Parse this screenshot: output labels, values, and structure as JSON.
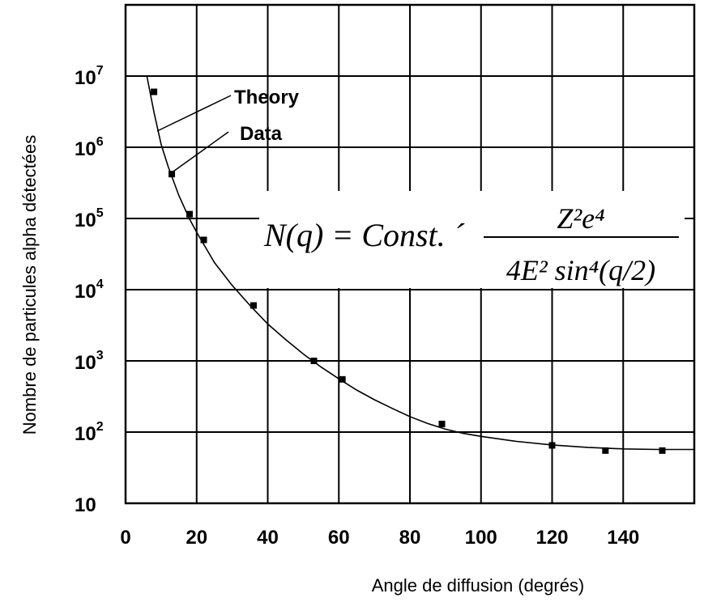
{
  "chart_data": {
    "type": "scatter",
    "ylabel": "Nombre de particules alpha détectées",
    "xlabel": "Angle de diffusion (degrés)",
    "xlim": [
      0,
      160
    ],
    "ylim": [
      10,
      100000000
    ],
    "y_scale": "log",
    "grid": true,
    "x_ticks": [
      "0",
      "20",
      "40",
      "60",
      "80",
      "100",
      "120",
      "140"
    ],
    "y_ticks": [
      {
        "base": "10",
        "exp": "7"
      },
      {
        "base": "10",
        "exp": "6"
      },
      {
        "base": "10",
        "exp": "5"
      },
      {
        "base": "10",
        "exp": "4"
      },
      {
        "base": "10",
        "exp": "3"
      },
      {
        "base": "10",
        "exp": "2"
      },
      {
        "base": "10",
        "exp": ""
      }
    ],
    "series": [
      {
        "name": "Theory",
        "kind": "line",
        "points": [
          [
            6,
            10000000
          ],
          [
            8,
            3100000
          ],
          [
            10,
            1100000
          ],
          [
            12,
            530000
          ],
          [
            15,
            210000
          ],
          [
            18,
            98000
          ],
          [
            20,
            64000
          ],
          [
            25,
            24000
          ],
          [
            30,
            11500
          ],
          [
            35,
            6000
          ],
          [
            40,
            3300
          ],
          [
            45,
            2000
          ],
          [
            50,
            1250
          ],
          [
            55,
            820
          ],
          [
            60,
            560
          ],
          [
            65,
            390
          ],
          [
            70,
            285
          ],
          [
            75,
            215
          ],
          [
            80,
            165
          ],
          [
            85,
            132
          ],
          [
            90,
            110
          ],
          [
            95,
            96
          ],
          [
            100,
            87
          ],
          [
            110,
            74
          ],
          [
            120,
            66
          ],
          [
            130,
            61
          ],
          [
            140,
            58
          ],
          [
            150,
            57
          ],
          [
            160,
            57
          ]
        ]
      },
      {
        "name": "Data",
        "kind": "scatter",
        "points": [
          [
            8,
            6000000
          ],
          [
            13,
            420000
          ],
          [
            18,
            115000
          ],
          [
            22,
            50000
          ],
          [
            36,
            6000
          ],
          [
            53,
            1000
          ],
          [
            61,
            550
          ],
          [
            89,
            130
          ],
          [
            120,
            65
          ],
          [
            135,
            55
          ],
          [
            151,
            55
          ]
        ]
      }
    ],
    "legend": [
      "Theory",
      "Data"
    ],
    "annotation": {
      "lhs": "N(q) = Const. ´",
      "numerator": "Z²e⁴",
      "denominator": "4E² sin⁴(q/2)"
    }
  }
}
